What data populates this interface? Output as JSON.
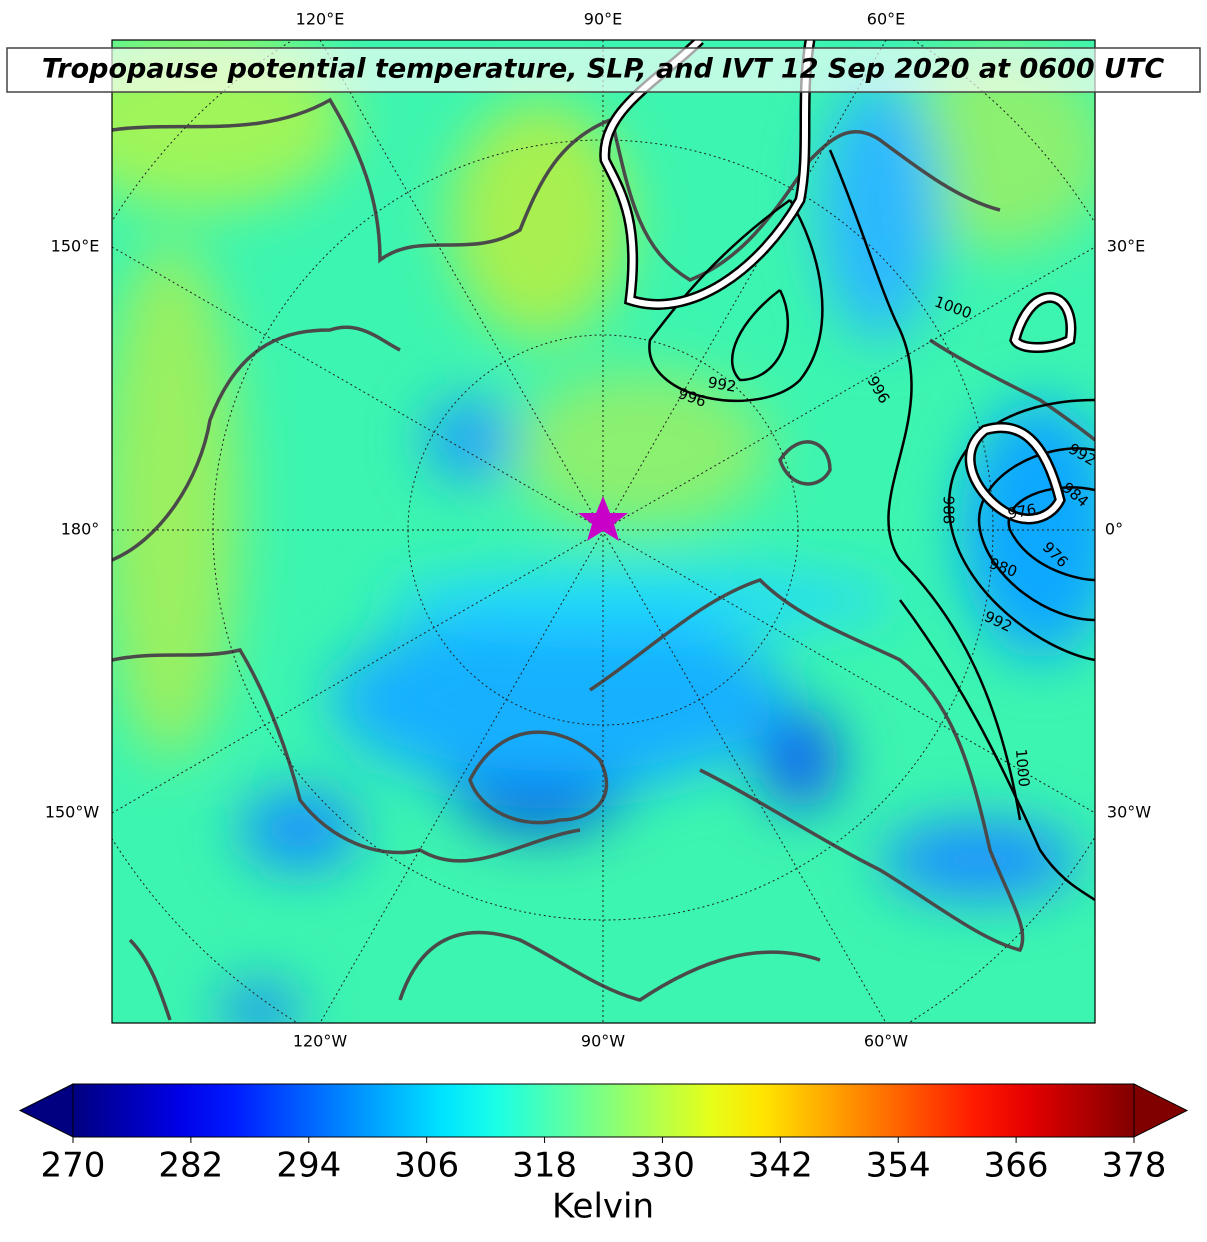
{
  "title": "Tropopause potential temperature, SLP, and IVT 12 Sep 2020 at 0600 UTC",
  "graticule_labels": {
    "top": [
      "120°E",
      "90°E",
      "60°E"
    ],
    "bottom": [
      "120°W",
      "90°W",
      "60°W"
    ],
    "left": [
      "150°E",
      "180°",
      "150°W"
    ],
    "right": [
      "30°E",
      "0°",
      "30°W"
    ]
  },
  "contour_labels": [
    "996",
    "992",
    "1000",
    "996",
    "988",
    "984",
    "976",
    "976",
    "980",
    "992",
    "1000",
    "992"
  ],
  "colorbar": {
    "colormap": "jet",
    "range": [
      270,
      378
    ],
    "ticks": [
      270,
      282,
      294,
      306,
      318,
      330,
      342,
      354,
      366,
      378
    ],
    "label": "Kelvin",
    "extend": "both"
  }
}
